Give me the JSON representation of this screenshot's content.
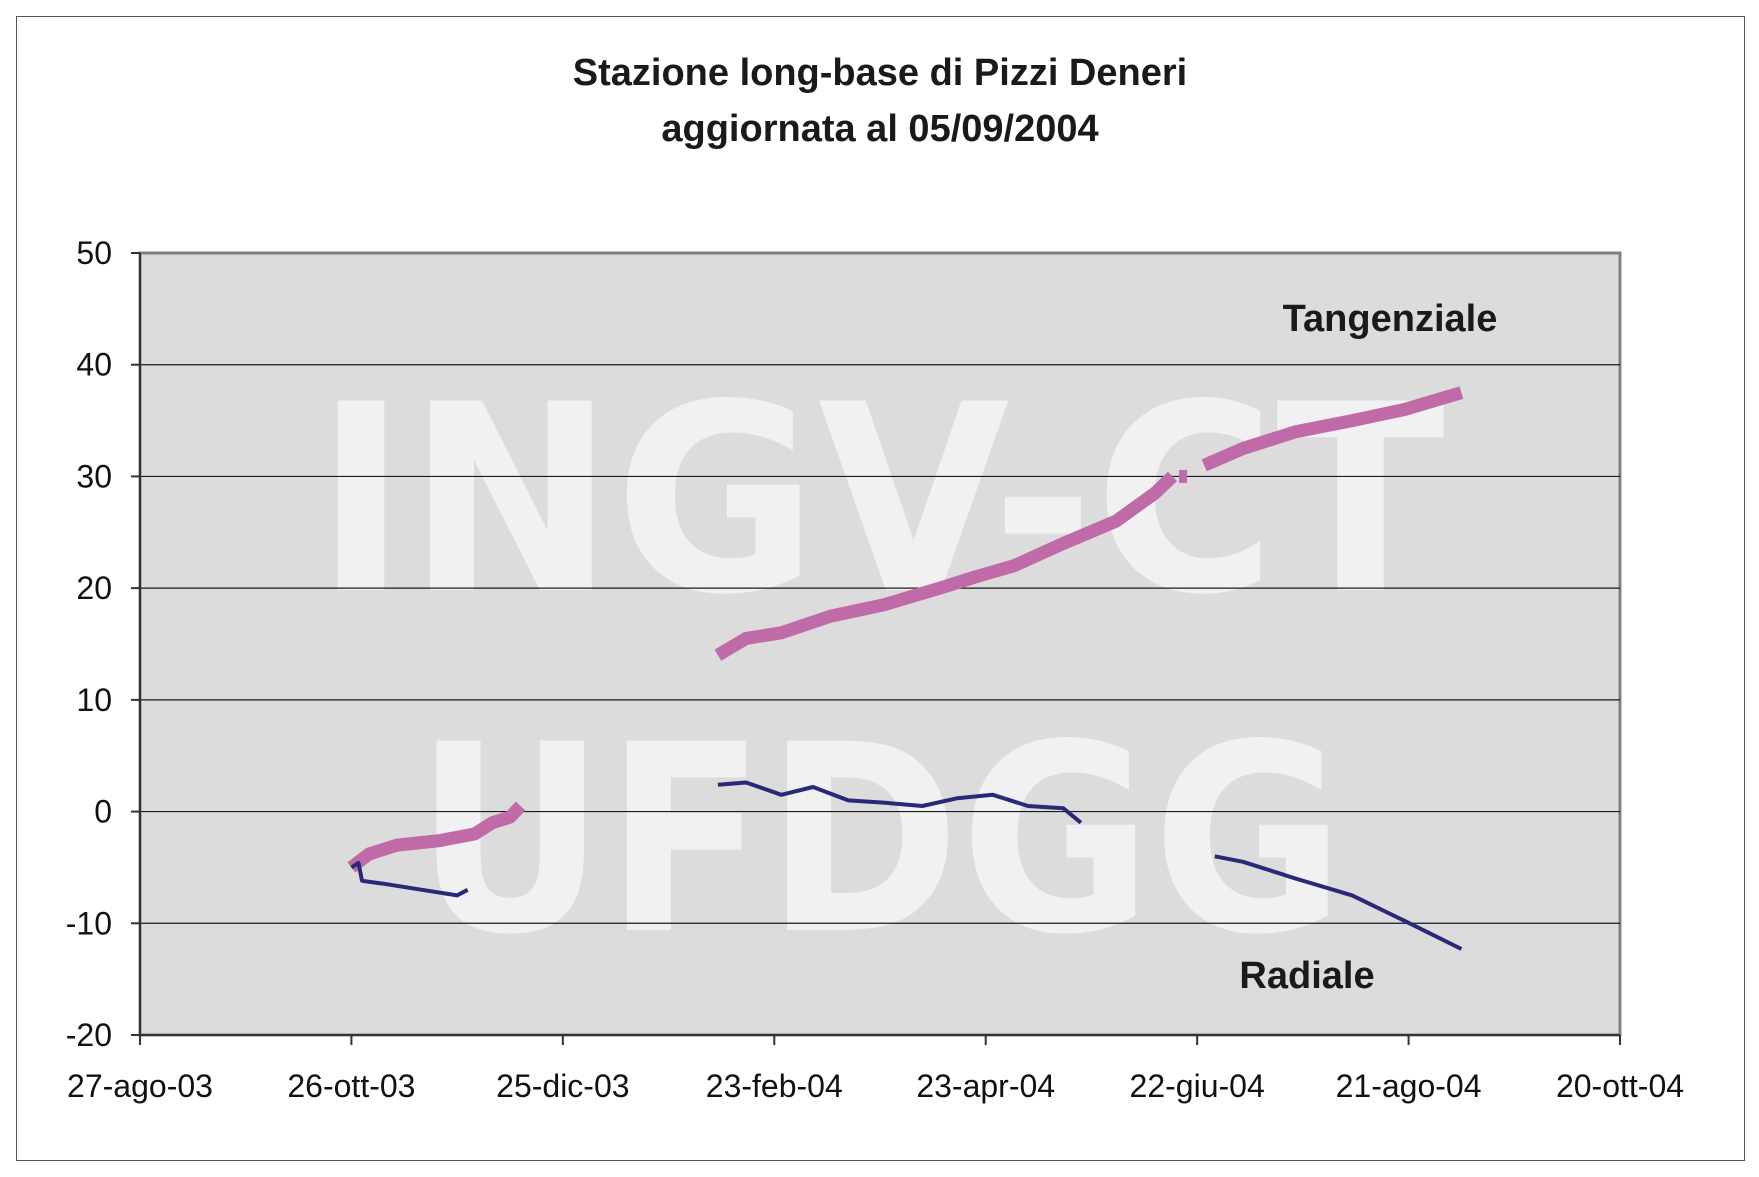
{
  "chart_data": {
    "type": "line",
    "title": "Stazione long-base di Pizzi Deneri",
    "subtitle": "aggiornata al 05/09/2004",
    "xlabel": "",
    "ylabel": "",
    "x_axis": {
      "type": "date",
      "min": "2003-08-27",
      "max": "2004-10-20",
      "ticks": [
        "27-ago-03",
        "26-ott-03",
        "25-dic-03",
        "23-feb-04",
        "23-apr-04",
        "22-giu-04",
        "21-ago-04",
        "20-ott-04"
      ]
    },
    "y_axis": {
      "min": -20,
      "max": 50,
      "ticks": [
        "-20",
        "-10",
        "0",
        "10",
        "20",
        "30",
        "40",
        "50"
      ]
    },
    "grid": true,
    "legend": "none",
    "watermark": [
      "INGV-CT",
      "UFDGG"
    ],
    "series": [
      {
        "name": "Tangenziale",
        "color": "#c06aa8",
        "segments": [
          [
            [
              "2003-10-26",
              -5.0
            ],
            [
              "2003-10-31",
              -3.8
            ],
            [
              "2003-11-08",
              -3.0
            ],
            [
              "2003-11-20",
              -2.6
            ],
            [
              "2003-11-30",
              -2.0
            ],
            [
              "2003-12-05",
              -1.0
            ],
            [
              "2003-12-10",
              -0.5
            ],
            [
              "2003-12-13",
              0.5
            ]
          ],
          [
            [
              "2004-02-07",
              14.0
            ],
            [
              "2004-02-15",
              15.5
            ],
            [
              "2004-02-25",
              16.0
            ],
            [
              "2004-03-10",
              17.5
            ],
            [
              "2004-03-25",
              18.5
            ],
            [
              "2004-04-10",
              20.0
            ],
            [
              "2004-04-20",
              21.0
            ],
            [
              "2004-05-01",
              22.0
            ],
            [
              "2004-05-15",
              24.0
            ],
            [
              "2004-05-30",
              26.0
            ],
            [
              "2004-06-10",
              28.5
            ],
            [
              "2004-06-15",
              30.0
            ]
          ],
          [
            [
              "2004-06-18",
              30.0
            ]
          ],
          [
            [
              "2004-06-24",
              31.0
            ],
            [
              "2004-07-05",
              32.5
            ],
            [
              "2004-07-20",
              34.0
            ],
            [
              "2004-08-05",
              35.0
            ],
            [
              "2004-08-20",
              36.0
            ],
            [
              "2004-09-05",
              37.5
            ]
          ]
        ]
      },
      {
        "name": "Radiale",
        "color": "#2a2878",
        "segments": [
          [
            [
              "2003-10-26",
              -5.0
            ],
            [
              "2003-10-28",
              -4.6
            ],
            [
              "2003-10-29",
              -6.2
            ],
            [
              "2003-11-05",
              -6.5
            ],
            [
              "2003-11-15",
              -7.0
            ],
            [
              "2003-11-25",
              -7.5
            ],
            [
              "2003-11-28",
              -7.0
            ]
          ],
          [
            [
              "2004-02-07",
              2.4
            ],
            [
              "2004-02-15",
              2.6
            ],
            [
              "2004-02-25",
              1.5
            ],
            [
              "2004-03-05",
              2.2
            ],
            [
              "2004-03-15",
              1.0
            ],
            [
              "2004-03-25",
              0.8
            ],
            [
              "2004-04-05",
              0.5
            ],
            [
              "2004-04-15",
              1.2
            ],
            [
              "2004-04-25",
              1.5
            ],
            [
              "2004-05-05",
              0.5
            ],
            [
              "2004-05-15",
              0.3
            ],
            [
              "2004-05-20",
              -1.0
            ]
          ],
          [
            [
              "2004-06-27",
              -4.0
            ],
            [
              "2004-07-05",
              -4.5
            ],
            [
              "2004-07-20",
              -6.0
            ],
            [
              "2004-08-05",
              -7.5
            ],
            [
              "2004-08-20",
              -9.8
            ],
            [
              "2004-09-05",
              -12.3
            ]
          ]
        ]
      }
    ]
  },
  "colors": {
    "plot_background": "#dcdcdc",
    "gridline": "#1a1a1a",
    "watermark": "#ffffff"
  }
}
